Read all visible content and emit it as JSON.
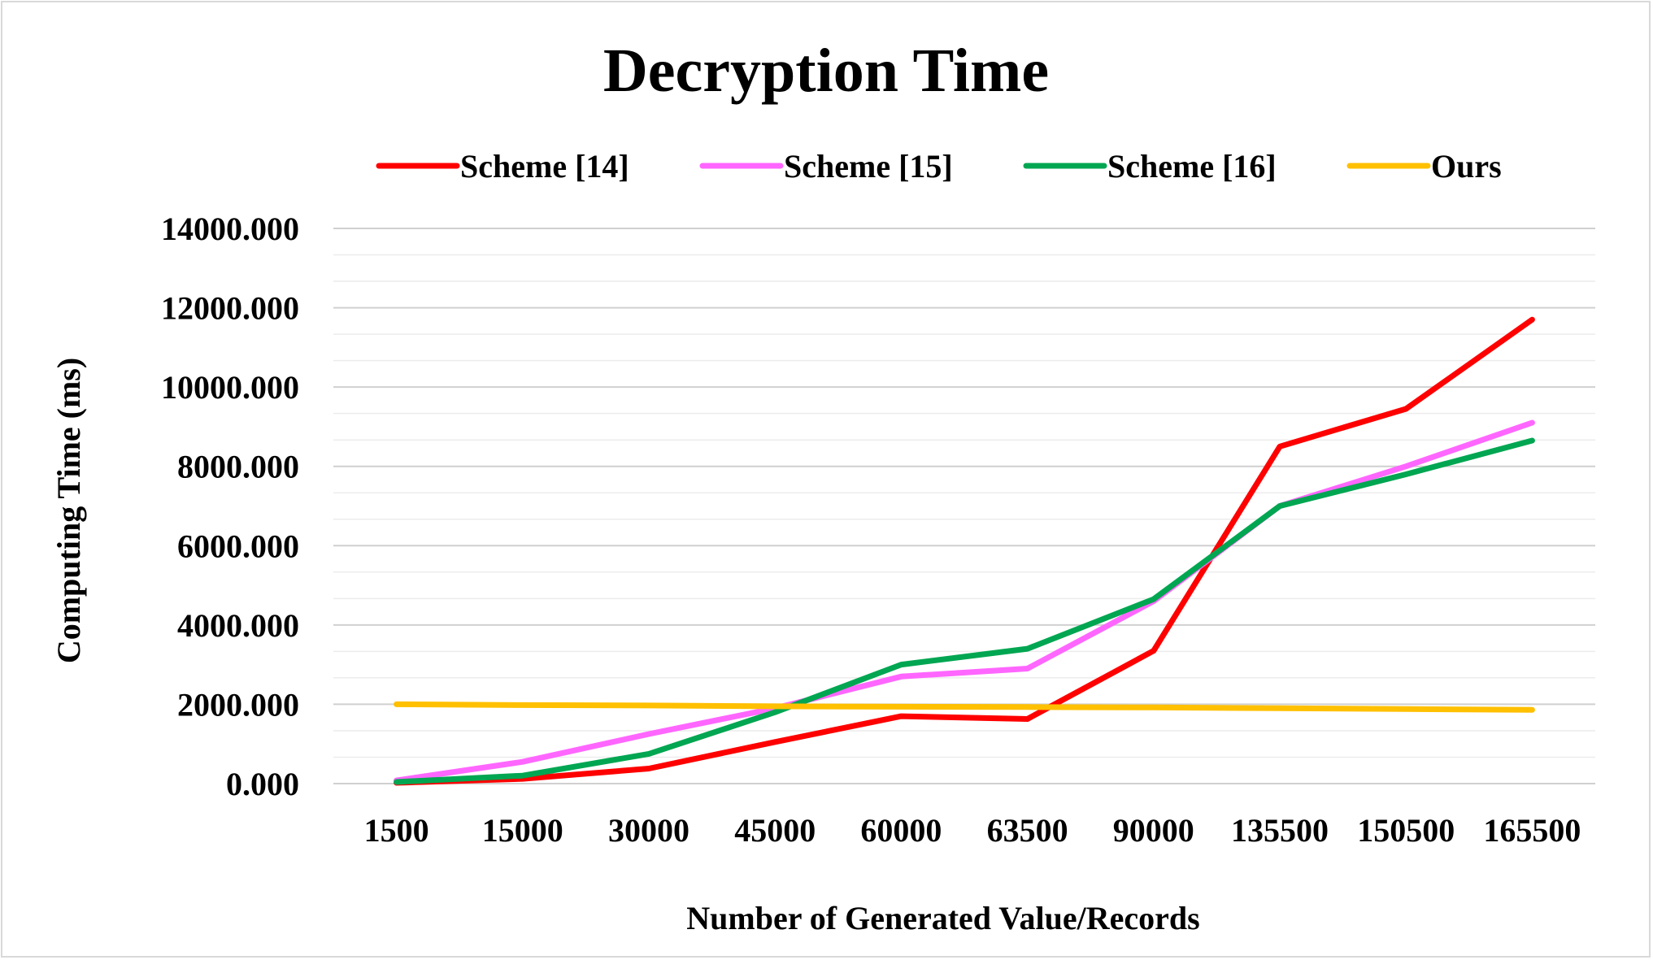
{
  "chart_data": {
    "type": "line",
    "title": "Decryption Time",
    "xlabel": "Number of Generated Value/Records",
    "ylabel": "Computing Time (ms)",
    "categories": [
      "1500",
      "15000",
      "30000",
      "45000",
      "60000",
      "63500",
      "90000",
      "135500",
      "150500",
      "165500"
    ],
    "ylim": [
      0,
      14000
    ],
    "yticks": [
      "0.000",
      "2000.000",
      "4000.000",
      "6000.000",
      "8000.000",
      "10000.000",
      "12000.000",
      "14000.000"
    ],
    "grid": true,
    "legend_position": "top",
    "series": [
      {
        "name": "Scheme [14]",
        "color": "#ff0000",
        "values": [
          20,
          120,
          380,
          1050,
          1700,
          1630,
          3350,
          8500,
          9450,
          11700
        ]
      },
      {
        "name": "Scheme [15]",
        "color": "#ff66ff",
        "values": [
          80,
          550,
          1250,
          1900,
          2700,
          2900,
          4600,
          7000,
          8000,
          9100
        ]
      },
      {
        "name": "Scheme [16]",
        "color": "#00a651",
        "values": [
          40,
          200,
          750,
          1800,
          3000,
          3400,
          4650,
          7000,
          7800,
          8650
        ]
      },
      {
        "name": "Ours",
        "color": "#ffc000",
        "values": [
          2000,
          1980,
          1970,
          1950,
          1940,
          1930,
          1920,
          1900,
          1880,
          1860
        ]
      }
    ]
  }
}
